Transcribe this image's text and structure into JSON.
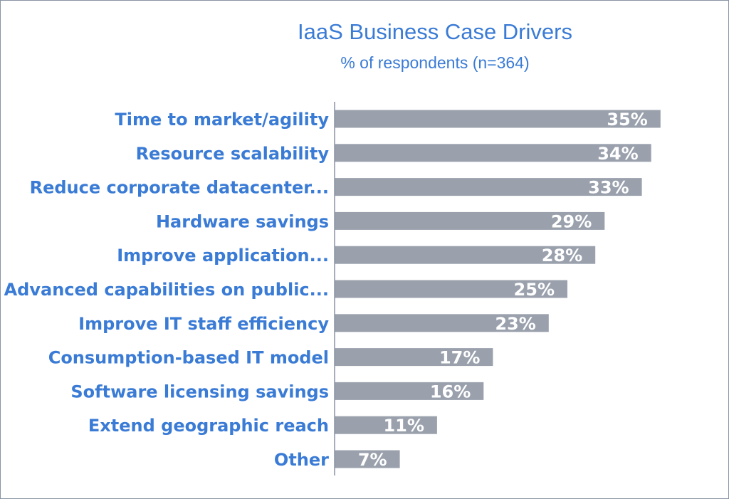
{
  "chart_data": {
    "type": "bar",
    "orientation": "horizontal",
    "title": "IaaS Business Case Drivers",
    "subtitle": "% of respondents (n=364)",
    "categories": [
      "Time to market/agility",
      "Resource scalability",
      "Reduce corporate datacenter...",
      "Hardware savings",
      "Improve application...",
      "Advanced capabilities on public...",
      "Improve IT staff efficiency",
      "Consumption-based IT model",
      "Software licensing savings",
      "Extend geographic reach",
      "Other"
    ],
    "values": [
      35,
      34,
      33,
      29,
      28,
      25,
      23,
      17,
      16,
      11,
      7
    ],
    "data_labels": [
      "35%",
      "34%",
      "33%",
      "29%",
      "28%",
      "25%",
      "23%",
      "17%",
      "16%",
      "11%",
      "7%"
    ],
    "xlim": [
      0,
      40
    ],
    "grid": false,
    "legend": "none",
    "colors": {
      "bar": "#9aa1ad",
      "category_text": "#3a7bd5",
      "value_text": "#ffffff",
      "title": "#3a7bd5"
    }
  }
}
